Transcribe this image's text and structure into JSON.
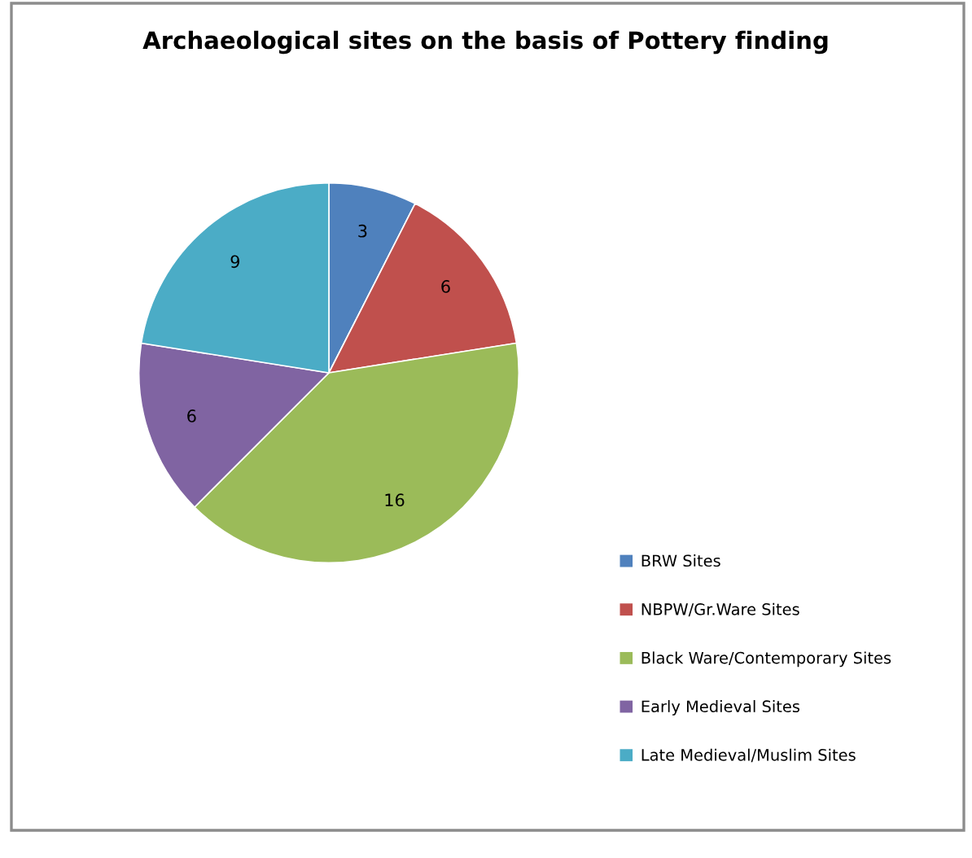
{
  "chart_data": {
    "type": "pie",
    "title": "Archaeological sites on the basis of Pottery finding",
    "categories": [
      "BRW Sites",
      "NBPW/Gr.Ware Sites",
      "Black Ware/Contemporary Sites",
      "Early Medieval Sites",
      "Late Medieval/Muslim Sites"
    ],
    "values": [
      3,
      6,
      16,
      6,
      9
    ],
    "colors": [
      "#4f81bd",
      "#c0504d",
      "#9bbb59",
      "#8064a2",
      "#4bacc6"
    ],
    "data_labels": true,
    "legend": "bottom right"
  }
}
